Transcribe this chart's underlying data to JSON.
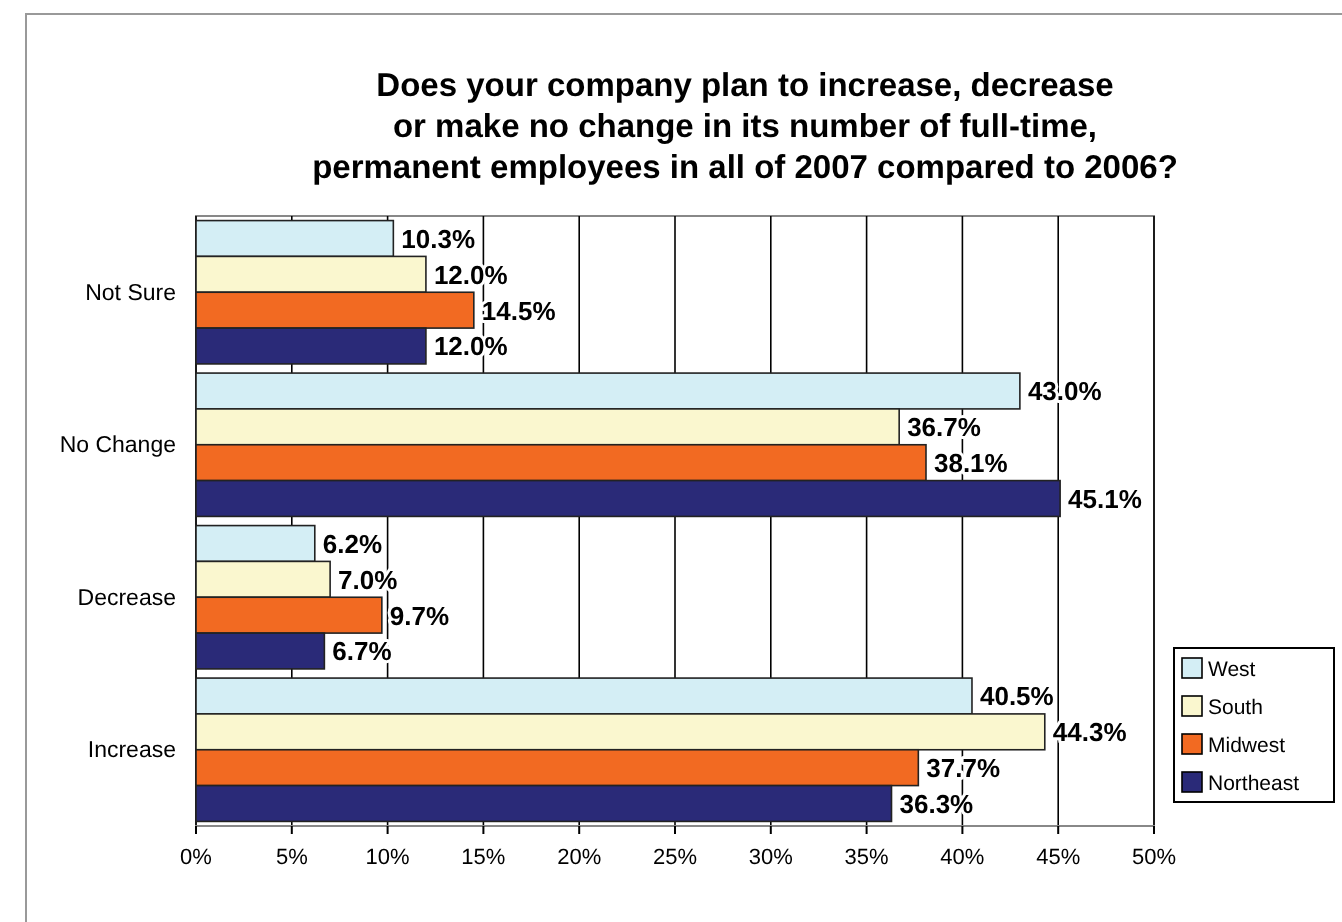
{
  "chart_data": {
    "type": "bar",
    "orientation": "horizontal",
    "title": "Does your company plan to increase, decrease\nor make no change in its number of full-time,\npermanent employees in all of 2007 compared to 2006?",
    "categories": [
      "Not Sure",
      "No Change",
      "Decrease",
      "Increase"
    ],
    "series": [
      {
        "name": "West",
        "color": "#d4eef5",
        "values": [
          10.3,
          43.0,
          6.2,
          40.5
        ],
        "value_labels": [
          "10.3%",
          "43.0%",
          "6.2%",
          "40.5%"
        ]
      },
      {
        "name": "South",
        "color": "#faf7cf",
        "values": [
          12.0,
          36.7,
          7.0,
          44.3
        ],
        "value_labels": [
          "12.0%",
          "36.7%",
          "7.0%",
          "44.3%"
        ]
      },
      {
        "name": "Midwest",
        "color": "#f26a22",
        "values": [
          14.5,
          38.1,
          9.7,
          37.7
        ],
        "value_labels": [
          "14.5%",
          "38.1%",
          "9.7%",
          "37.7%"
        ]
      },
      {
        "name": "Northeast",
        "color": "#2a2a78",
        "values": [
          12.0,
          45.1,
          6.7,
          36.3
        ],
        "value_labels": [
          "12.0%",
          "45.1%",
          "6.7%",
          "36.3%"
        ]
      }
    ],
    "xlim": [
      0,
      50
    ],
    "xticks": [
      {
        "value": 0,
        "label": "0%"
      },
      {
        "value": 5,
        "label": "5%"
      },
      {
        "value": 10,
        "label": "10%"
      },
      {
        "value": 15,
        "label": "15%"
      },
      {
        "value": 20,
        "label": "20%"
      },
      {
        "value": 25,
        "label": "25%"
      },
      {
        "value": 30,
        "label": "30%"
      },
      {
        "value": 35,
        "label": "35%"
      },
      {
        "value": 40,
        "label": "40%"
      },
      {
        "value": 45,
        "label": "45%"
      },
      {
        "value": 50,
        "label": "50%"
      }
    ],
    "grid": "x",
    "legend": "bottom right"
  }
}
